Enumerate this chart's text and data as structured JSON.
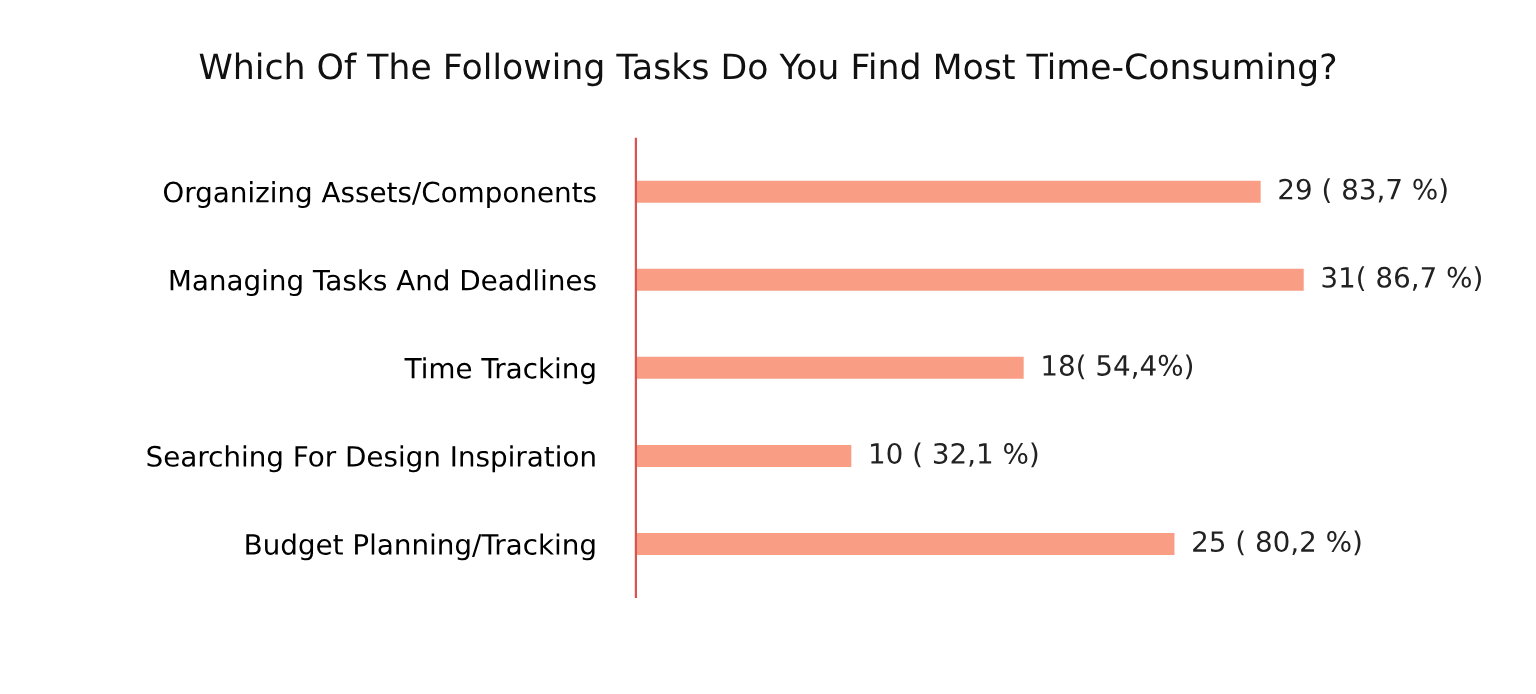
{
  "chart_data": {
    "type": "bar",
    "orientation": "horizontal",
    "title": "Which Of The Following Tasks Do You Find Most Time-Consuming?",
    "categories": [
      "Organizing Assets/Components",
      "Managing Tasks And Deadlines",
      "Time Tracking",
      "Searching For Design Inspiration",
      "Budget Planning/Tracking"
    ],
    "values": [
      29,
      31,
      18,
      10,
      25
    ],
    "value_labels": [
      "29 ( 83,7 %)",
      "31( 86,7 %)",
      "18( 54,4%)",
      "10 ( 32,1 %)",
      "25 ( 80,2 %)"
    ],
    "color": "#f99d84",
    "tick_labels": "y",
    "grid": false,
    "legend": false
  }
}
